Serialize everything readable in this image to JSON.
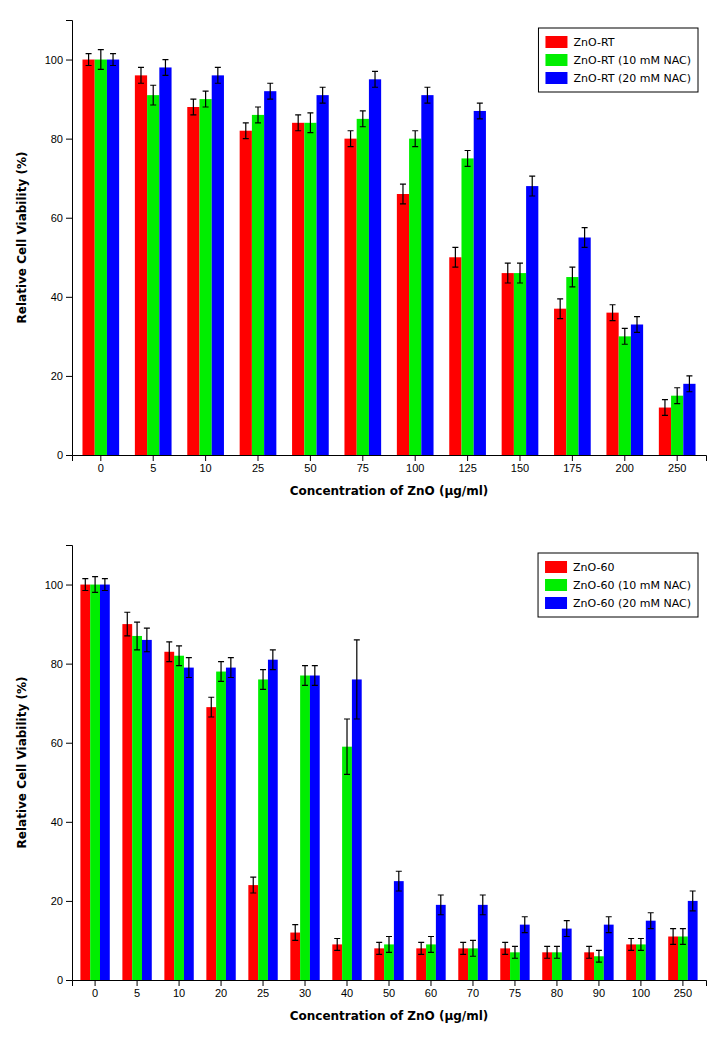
{
  "chart_data": [
    {
      "type": "bar",
      "xlabel": "Concentration of ZnO (μg/ml)",
      "ylabel": "Relative Cell Viability (%)",
      "categories": [
        0,
        5,
        10,
        25,
        50,
        75,
        100,
        125,
        150,
        175,
        200,
        250
      ],
      "series": [
        {
          "name": "ZnO-RT",
          "color": "#FF0000",
          "values": [
            100,
            96,
            88,
            82,
            84,
            80,
            66,
            50,
            46,
            37,
            36,
            12
          ],
          "errors": [
            1.5,
            2.0,
            2.0,
            2.0,
            2.0,
            2.0,
            2.5,
            2.5,
            2.5,
            2.5,
            2.0,
            2.0
          ]
        },
        {
          "name": "ZnO-RT (10 mM NAC)",
          "color": "#00EE00",
          "values": [
            100,
            91,
            90,
            86,
            84,
            85,
            80,
            75,
            46,
            45,
            30,
            15
          ],
          "errors": [
            2.5,
            2.5,
            2.0,
            2.0,
            2.5,
            2.0,
            2.0,
            2.0,
            2.5,
            2.5,
            2.0,
            2.0
          ]
        },
        {
          "name": "ZnO-RT (20 mM NAC)",
          "color": "#0000FF",
          "values": [
            100,
            98,
            96,
            92,
            91,
            95,
            91,
            87,
            68,
            55,
            33,
            18
          ],
          "errors": [
            1.5,
            2.0,
            2.0,
            2.0,
            2.0,
            2.0,
            2.0,
            2.0,
            2.5,
            2.5,
            2.0,
            2.0
          ]
        }
      ],
      "ylim": [
        0,
        110
      ],
      "yticks": [
        0,
        20,
        40,
        60,
        80,
        100
      ],
      "legend": "upper right",
      "grid": false
    },
    {
      "type": "bar",
      "xlabel": "Concentration of ZnO (μg/ml)",
      "ylabel": "Relative Cell Viability (%)",
      "categories": [
        0,
        5,
        10,
        20,
        25,
        30,
        40,
        50,
        60,
        70,
        75,
        80,
        90,
        100,
        250
      ],
      "series": [
        {
          "name": "ZnO-60",
          "color": "#FF0000",
          "values": [
            100,
            90,
            83,
            69,
            24,
            12,
            9,
            8,
            8,
            8,
            8,
            7,
            7,
            9,
            11
          ],
          "errors": [
            1.5,
            3.0,
            2.5,
            2.5,
            2.0,
            2.0,
            1.5,
            1.5,
            1.5,
            1.5,
            1.5,
            1.5,
            1.5,
            1.5,
            2.0
          ]
        },
        {
          "name": "ZnO-60 (10 mM NAC)",
          "color": "#00EE00",
          "values": [
            100,
            87,
            82,
            78,
            76,
            77,
            59,
            9,
            9,
            8,
            7,
            7,
            6,
            9,
            11
          ],
          "errors": [
            2.0,
            3.5,
            2.5,
            2.5,
            2.5,
            2.5,
            7.0,
            2.0,
            2.0,
            2.0,
            1.5,
            1.5,
            1.5,
            1.5,
            2.0
          ]
        },
        {
          "name": "ZnO-60 (20 mM NAC)",
          "color": "#0000FF",
          "values": [
            100,
            86,
            79,
            79,
            81,
            77,
            76,
            25,
            19,
            19,
            14,
            13,
            14,
            15,
            20
          ],
          "errors": [
            1.5,
            3.0,
            2.5,
            2.5,
            2.5,
            2.5,
            10.0,
            2.5,
            2.5,
            2.5,
            2.0,
            2.0,
            2.0,
            2.0,
            2.5
          ]
        }
      ],
      "ylim": [
        0,
        110
      ],
      "yticks": [
        0,
        20,
        40,
        60,
        80,
        100
      ],
      "legend": "upper right",
      "grid": false
    }
  ]
}
